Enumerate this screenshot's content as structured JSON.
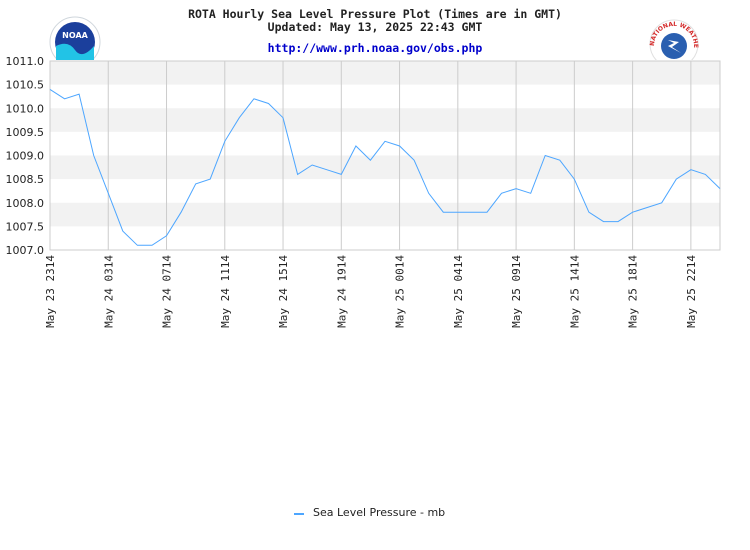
{
  "header": {
    "title": "ROTA Hourly Sea Level Pressure Plot (Times are in GMT)",
    "updated": "Updated: May 13, 2025 22:43 GMT",
    "url": "http://www.prh.noaa.gov/obs.php"
  },
  "logos": {
    "noaa": {
      "text": "NOAA",
      "icon": "noaa-logo"
    },
    "nws": {
      "text": "NATIONAL WEATHER SERVICE",
      "icon": "nws-logo"
    }
  },
  "colors": {
    "series": "#4da6ff",
    "band": "#f2f2f2",
    "grid": "#cccccc"
  },
  "chart_data": {
    "type": "line",
    "ylim": [
      1007.0,
      1011.0
    ],
    "y_ticks": [
      "1011.0",
      "1010.5",
      "1010.0",
      "1009.5",
      "1009.0",
      "1008.5",
      "1008.0",
      "1007.5",
      "1007.0"
    ],
    "x_ticks": [
      "May 23 2314",
      "May 24 0314",
      "May 24 0714",
      "May 24 1114",
      "May 24 1514",
      "May 24 1914",
      "May 25 0014",
      "May 25 0414",
      "May 25 0914",
      "May 25 1414",
      "May 25 1814",
      "May 25 2214"
    ],
    "grid": true,
    "legend_position": "bottom-center",
    "series": [
      {
        "name": "Sea Level Pressure - mb",
        "values": [
          1010.4,
          1010.2,
          1010.3,
          1009.0,
          1008.2,
          1007.4,
          1007.1,
          1007.1,
          1007.3,
          1007.8,
          1008.4,
          1008.5,
          1009.3,
          1009.8,
          1010.2,
          1010.1,
          1009.8,
          1008.6,
          1008.8,
          1008.7,
          1008.6,
          1009.2,
          1008.9,
          1009.3,
          1009.2,
          1008.9,
          1008.2,
          1007.8,
          1007.8,
          1007.8,
          1007.8,
          1008.2,
          1008.3,
          1008.2,
          1009.0,
          1008.9,
          1008.5,
          1007.8,
          1007.6,
          1007.6,
          1007.8,
          1007.9,
          1008.0,
          1008.5,
          1008.7,
          1008.6,
          1008.3
        ]
      }
    ]
  }
}
